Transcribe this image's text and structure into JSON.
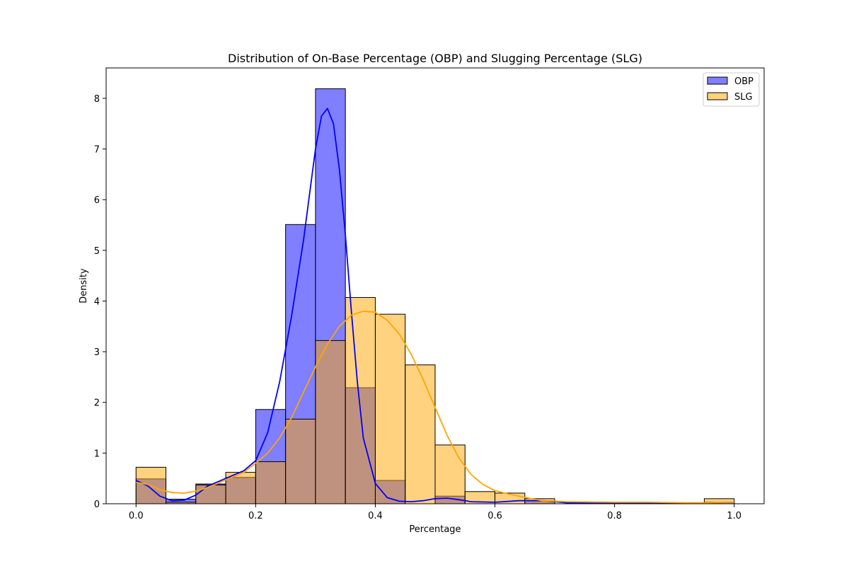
{
  "chart_data": {
    "type": "histogram",
    "title": "Distribution of On-Base Percentage (OBP) and Slugging Percentage (SLG)",
    "xlabel": "Percentage",
    "ylabel": "Density",
    "xlim": [
      -0.05,
      1.05
    ],
    "ylim": [
      0,
      8.6
    ],
    "xticks": [
      "0.0",
      "0.2",
      "0.4",
      "0.6",
      "0.8",
      "1.0"
    ],
    "yticks": [
      "0",
      "1",
      "2",
      "3",
      "4",
      "5",
      "6",
      "7",
      "8"
    ],
    "bins": [
      0.0,
      0.05,
      0.1,
      0.15,
      0.2,
      0.25,
      0.3,
      0.35,
      0.4,
      0.45,
      0.5,
      0.55,
      0.6,
      0.65,
      0.7,
      0.75,
      0.8,
      0.85,
      0.9,
      0.95,
      1.0
    ],
    "grid": false,
    "legend_position": "top-right",
    "series": [
      {
        "name": "OBP",
        "color": "#0000ff",
        "density": [
          0.49,
          0.09,
          0.39,
          0.52,
          1.86,
          5.51,
          8.19,
          2.29,
          0.46,
          0.0,
          0.15,
          0.0,
          0.0,
          0.06,
          0.0,
          0.0,
          0.0,
          0.0,
          0.0,
          0.03
        ],
        "kde": [
          [
            0.0,
            0.46
          ],
          [
            0.02,
            0.35
          ],
          [
            0.04,
            0.15
          ],
          [
            0.06,
            0.06
          ],
          [
            0.08,
            0.07
          ],
          [
            0.1,
            0.17
          ],
          [
            0.12,
            0.35
          ],
          [
            0.14,
            0.45
          ],
          [
            0.16,
            0.55
          ],
          [
            0.18,
            0.65
          ],
          [
            0.2,
            0.85
          ],
          [
            0.22,
            1.4
          ],
          [
            0.24,
            2.4
          ],
          [
            0.26,
            3.7
          ],
          [
            0.28,
            5.2
          ],
          [
            0.3,
            7.0
          ],
          [
            0.31,
            7.65
          ],
          [
            0.32,
            7.8
          ],
          [
            0.33,
            7.5
          ],
          [
            0.34,
            6.6
          ],
          [
            0.35,
            5.3
          ],
          [
            0.36,
            3.8
          ],
          [
            0.37,
            2.4
          ],
          [
            0.38,
            1.3
          ],
          [
            0.4,
            0.4
          ],
          [
            0.42,
            0.12
          ],
          [
            0.44,
            0.05
          ],
          [
            0.46,
            0.04
          ],
          [
            0.48,
            0.06
          ],
          [
            0.5,
            0.1
          ],
          [
            0.52,
            0.11
          ],
          [
            0.54,
            0.08
          ],
          [
            0.56,
            0.04
          ],
          [
            0.6,
            0.03
          ],
          [
            0.64,
            0.06
          ],
          [
            0.68,
            0.06
          ],
          [
            0.72,
            0.02
          ],
          [
            0.8,
            0.01
          ],
          [
            0.9,
            0.01
          ],
          [
            0.96,
            0.02
          ],
          [
            1.0,
            0.03
          ]
        ]
      },
      {
        "name": "SLG",
        "color": "#ffa500",
        "density": [
          0.72,
          0.03,
          0.37,
          0.62,
          0.83,
          1.67,
          3.22,
          4.07,
          3.74,
          2.74,
          1.16,
          0.24,
          0.21,
          0.1,
          0.0,
          0.0,
          0.0,
          0.0,
          0.0,
          0.1
        ],
        "kde": [
          [
            0.0,
            0.42
          ],
          [
            0.02,
            0.38
          ],
          [
            0.04,
            0.28
          ],
          [
            0.06,
            0.22
          ],
          [
            0.08,
            0.21
          ],
          [
            0.1,
            0.25
          ],
          [
            0.12,
            0.32
          ],
          [
            0.14,
            0.42
          ],
          [
            0.16,
            0.52
          ],
          [
            0.18,
            0.62
          ],
          [
            0.2,
            0.8
          ],
          [
            0.22,
            1.0
          ],
          [
            0.24,
            1.3
          ],
          [
            0.26,
            1.7
          ],
          [
            0.28,
            2.2
          ],
          [
            0.3,
            2.7
          ],
          [
            0.32,
            3.15
          ],
          [
            0.34,
            3.5
          ],
          [
            0.36,
            3.72
          ],
          [
            0.38,
            3.8
          ],
          [
            0.4,
            3.78
          ],
          [
            0.42,
            3.62
          ],
          [
            0.44,
            3.35
          ],
          [
            0.46,
            2.95
          ],
          [
            0.48,
            2.45
          ],
          [
            0.5,
            1.9
          ],
          [
            0.52,
            1.35
          ],
          [
            0.54,
            0.9
          ],
          [
            0.56,
            0.58
          ],
          [
            0.58,
            0.38
          ],
          [
            0.6,
            0.26
          ],
          [
            0.62,
            0.2
          ],
          [
            0.64,
            0.15
          ],
          [
            0.66,
            0.1
          ],
          [
            0.68,
            0.06
          ],
          [
            0.72,
            0.04
          ],
          [
            0.8,
            0.03
          ],
          [
            0.86,
            0.03
          ],
          [
            0.92,
            0.02
          ],
          [
            0.96,
            0.02
          ],
          [
            1.0,
            0.03
          ]
        ]
      }
    ]
  }
}
